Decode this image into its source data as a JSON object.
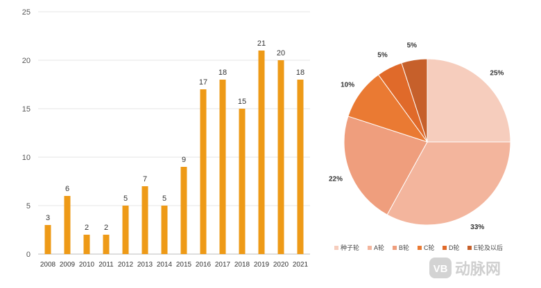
{
  "chart_data": [
    {
      "type": "bar",
      "categories": [
        "2008",
        "2009",
        "2010",
        "2011",
        "2012",
        "2013",
        "2014",
        "2015",
        "2016",
        "2017",
        "2018",
        "2019",
        "2020",
        "2021"
      ],
      "values": [
        3,
        6,
        2,
        2,
        5,
        7,
        5,
        9,
        17,
        18,
        15,
        21,
        20,
        18
      ],
      "ylim": [
        0,
        25
      ],
      "yticks": [
        0,
        5,
        10,
        15,
        20,
        25
      ],
      "grid": true,
      "color": "#ee9a17",
      "title": "",
      "xlabel": "",
      "ylabel": ""
    },
    {
      "type": "pie",
      "labels": [
        "种子轮",
        "A轮",
        "B轮",
        "C轮",
        "D轮",
        "E轮及以后"
      ],
      "values": [
        25,
        33,
        22,
        10,
        5,
        5
      ],
      "value_labels": [
        "25%",
        "33%",
        "22%",
        "10%",
        "5%",
        "5%"
      ],
      "colors": [
        "#f6cdbd",
        "#f3b59d",
        "#ef9e7d",
        "#ea7a33",
        "#e06a2a",
        "#c6602b"
      ],
      "legend_position": "bottom"
    }
  ],
  "watermark": {
    "badge": "VB",
    "text": "动脉网"
  }
}
